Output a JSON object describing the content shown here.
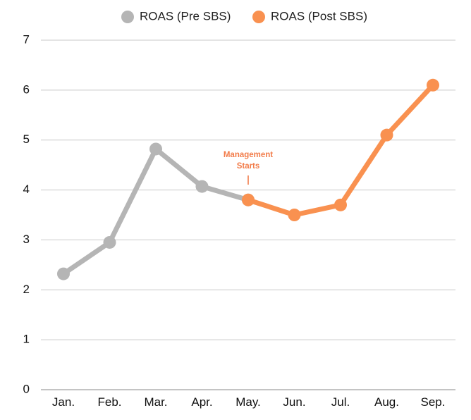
{
  "chart_data": {
    "type": "line",
    "categories": [
      "Jan.",
      "Feb.",
      "Mar.",
      "Apr.",
      "May.",
      "Jun.",
      "Jul.",
      "Aug.",
      "Sep."
    ],
    "series": [
      {
        "name": "ROAS (Pre SBS)",
        "color": "#b5b5b5",
        "x": [
          "Jan.",
          "Feb.",
          "Mar.",
          "Apr.",
          "May."
        ],
        "values": [
          2.32,
          2.95,
          4.82,
          4.07,
          3.8
        ]
      },
      {
        "name": "ROAS (Post SBS)",
        "color": "#f99150",
        "x": [
          "May.",
          "Jun.",
          "Jul.",
          "Aug.",
          "Sep."
        ],
        "values": [
          3.8,
          3.5,
          3.7,
          5.1,
          6.1
        ]
      }
    ],
    "ylim": [
      0,
      7
    ],
    "yticks": [
      "0",
      "1",
      "2",
      "3",
      "4",
      "5",
      "6",
      "7"
    ],
    "grid": true,
    "legend_position": "top-center",
    "annotation": {
      "lines": [
        "Management",
        "Starts"
      ],
      "at": "May.",
      "color": "#f27c4a"
    }
  }
}
